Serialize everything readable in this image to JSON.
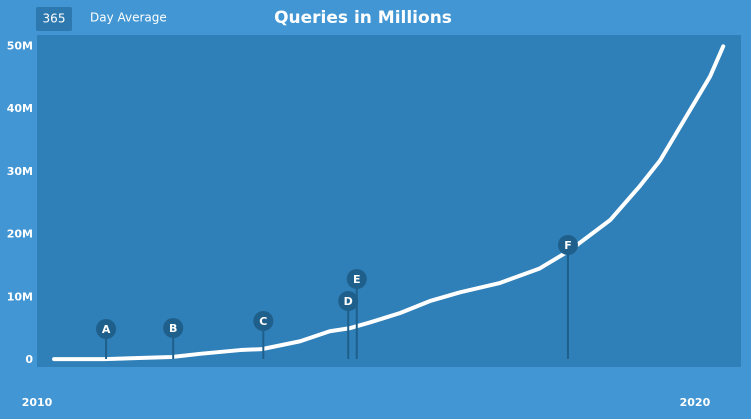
{
  "chart_data": {
    "type": "line",
    "title": "Queries in Millions",
    "badge": "365",
    "subtitle": "Day Average",
    "x": [
      2010.26,
      2011.03,
      2012.05,
      2012.48,
      2013.09,
      2013.42,
      2014.0,
      2014.45,
      2014.76,
      2015.06,
      2015.52,
      2015.97,
      2016.43,
      2017.04,
      2017.64,
      2018.1,
      2018.71,
      2019.16,
      2019.47,
      2019.85,
      2020.23,
      2020.43
    ],
    "series": [
      {
        "color": "#ffffff",
        "values": [
          0.15,
          0.15,
          0.5,
          1.0,
          1.6,
          1.75,
          3.0,
          4.6,
          5.1,
          6.0,
          7.5,
          9.4,
          10.8,
          12.3,
          14.6,
          17.5,
          22.3,
          27.7,
          31.8,
          38.5,
          45.2,
          50
        ]
      }
    ],
    "annotations": [
      {
        "label": "A",
        "x": 2011.05
      },
      {
        "label": "B",
        "x": 2012.07
      },
      {
        "label": "C",
        "x": 2013.44
      },
      {
        "label": "D",
        "x": 2014.73
      },
      {
        "label": "E",
        "x": 2014.86
      },
      {
        "label": "F",
        "x": 2018.07
      }
    ],
    "xlim": [
      2010,
      2020.7
    ],
    "xticks": [
      2010,
      2020
    ],
    "ylim": [
      -1.1,
      51.8
    ],
    "yticks": [
      0,
      {
        "value": 10,
        "label": "10M"
      },
      {
        "value": 20,
        "label": "20M"
      },
      {
        "value": 30,
        "label": "30M"
      },
      {
        "value": 40,
        "label": "40M"
      },
      {
        "value": 50,
        "label": "50M"
      }
    ]
  }
}
